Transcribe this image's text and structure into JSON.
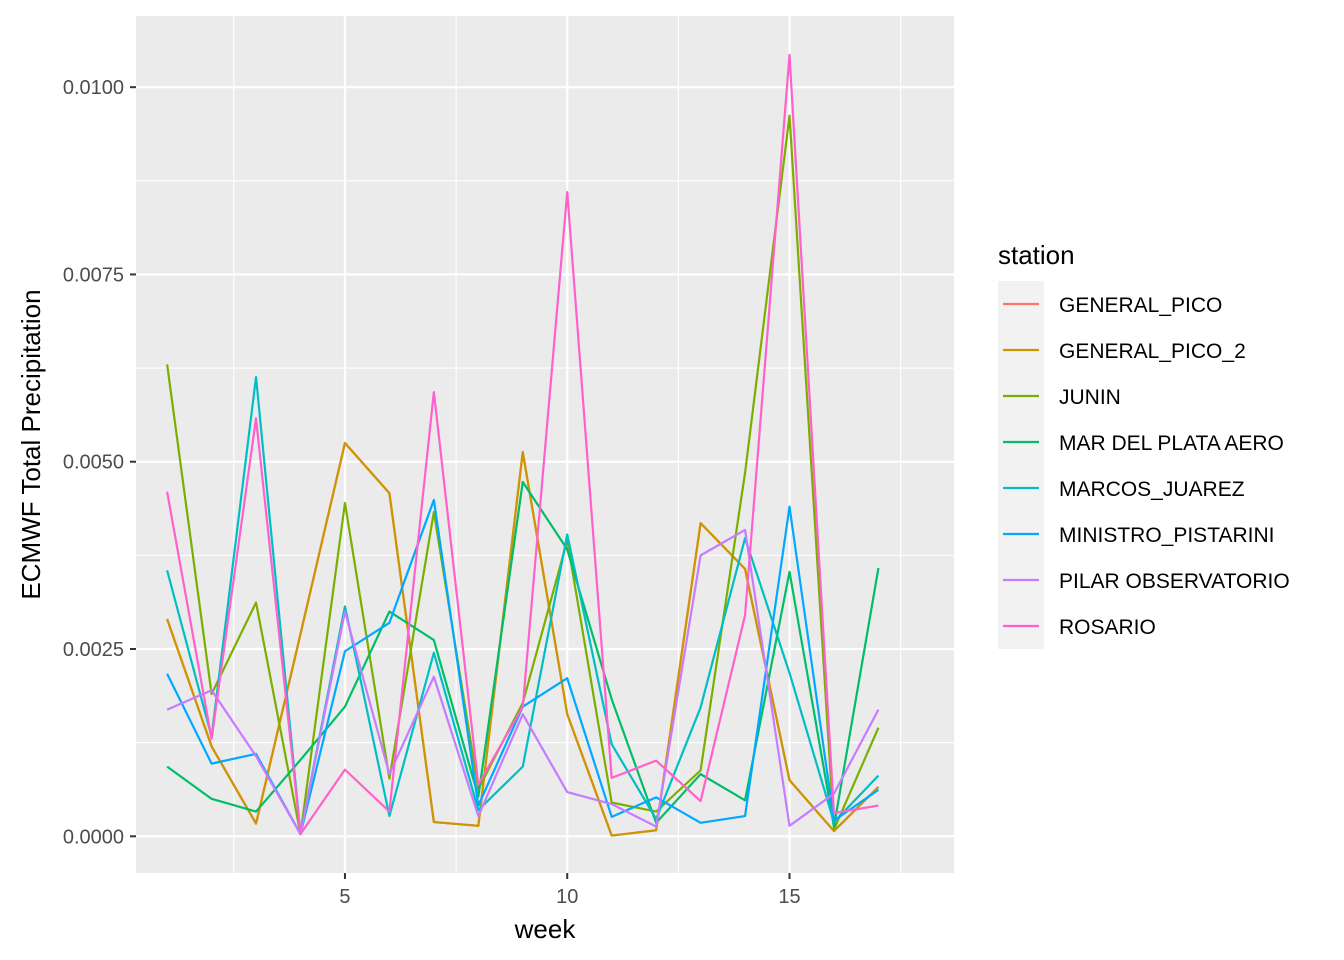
{
  "chart_data": {
    "type": "line",
    "xlabel": "week",
    "ylabel": "ECMWF Total Precipitation",
    "xlim": [
      0.3,
      18.7
    ],
    "ylim": [
      -0.00049,
      0.01095
    ],
    "x_ticks": [
      5,
      10,
      15
    ],
    "x_tick_labels": [
      "5",
      "10",
      "15"
    ],
    "y_ticks": [
      0.0,
      0.0025,
      0.005,
      0.0075,
      0.01
    ],
    "y_tick_labels": [
      "0.0000",
      "0.0025",
      "0.0050",
      "0.0075",
      "0.0100"
    ],
    "grid": true,
    "legend": {
      "title": "station",
      "position": "right"
    },
    "x": [
      1,
      2,
      3,
      4,
      5,
      6,
      7,
      8,
      9,
      10,
      11,
      12,
      13,
      14,
      15,
      16,
      17
    ],
    "series": [
      {
        "name": "GENERAL_PICO",
        "color": "#F8766D",
        "values": [
          0.0029,
          0.0012,
          0.00017,
          0.0027,
          0.00525,
          0.00458,
          0.00019,
          0.00014,
          0.00513,
          0.00163,
          1e-05,
          8e-05,
          0.00418,
          0.00357,
          0.00075,
          7e-05,
          0.00066
        ]
      },
      {
        "name": "GENERAL_PICO_2",
        "color": "#CD9600",
        "values": [
          0.0029,
          0.0012,
          0.00017,
          0.0027,
          0.00525,
          0.00458,
          0.00019,
          0.00014,
          0.00513,
          0.00163,
          1e-05,
          8e-05,
          0.00418,
          0.00357,
          0.00075,
          7e-05,
          0.00066
        ]
      },
      {
        "name": "JUNIN",
        "color": "#7CAE00",
        "values": [
          0.0063,
          0.0019,
          0.00312,
          3e-05,
          0.00445,
          0.00077,
          0.00433,
          0.00063,
          0.00178,
          0.00395,
          0.00045,
          0.00033,
          0.00088,
          0.00485,
          0.00962,
          9e-05,
          0.00145
        ]
      },
      {
        "name": "MAR DEL PLATA AERO",
        "color": "#00BE67",
        "values": [
          0.00093,
          0.0005,
          0.00033,
          0.00102,
          0.00173,
          0.003,
          0.00262,
          0.00053,
          0.00473,
          0.00383,
          0.00183,
          0.00018,
          0.00083,
          0.00048,
          0.00353,
          0.00013,
          0.00358
        ]
      },
      {
        "name": "MARCOS_JUAREZ",
        "color": "#00BFC4",
        "values": [
          0.00355,
          0.00133,
          0.00613,
          3e-05,
          0.00307,
          0.00027,
          0.00245,
          0.00035,
          0.00093,
          0.00403,
          0.00123,
          0.00023,
          0.00172,
          0.00398,
          0.00218,
          0.00019,
          0.00081
        ]
      },
      {
        "name": "MINISTRO_PISTARINI",
        "color": "#00A9FF",
        "values": [
          0.00217,
          0.00097,
          0.0011,
          3e-05,
          0.00247,
          0.00285,
          0.00449,
          0.00041,
          0.00173,
          0.00211,
          0.00026,
          0.00052,
          0.00018,
          0.00027,
          0.0044,
          0.00021,
          0.00062
        ]
      },
      {
        "name": "PILAR OBSERVATORIO",
        "color": "#C77CFF",
        "values": [
          0.00169,
          0.00195,
          0.00107,
          3e-05,
          0.003,
          0.00083,
          0.00213,
          0.00027,
          0.00163,
          0.00059,
          0.00043,
          0.00013,
          0.00375,
          0.00409,
          0.00014,
          0.00057,
          0.00169
        ]
      },
      {
        "name": "ROSARIO",
        "color": "#FF61CC",
        "values": [
          0.0046,
          0.0013,
          0.00558,
          3e-05,
          0.00089,
          0.00033,
          0.00593,
          0.00069,
          0.00173,
          0.0086,
          0.00078,
          0.00101,
          0.00047,
          0.00295,
          0.01043,
          0.00031,
          0.00041
        ]
      }
    ]
  }
}
